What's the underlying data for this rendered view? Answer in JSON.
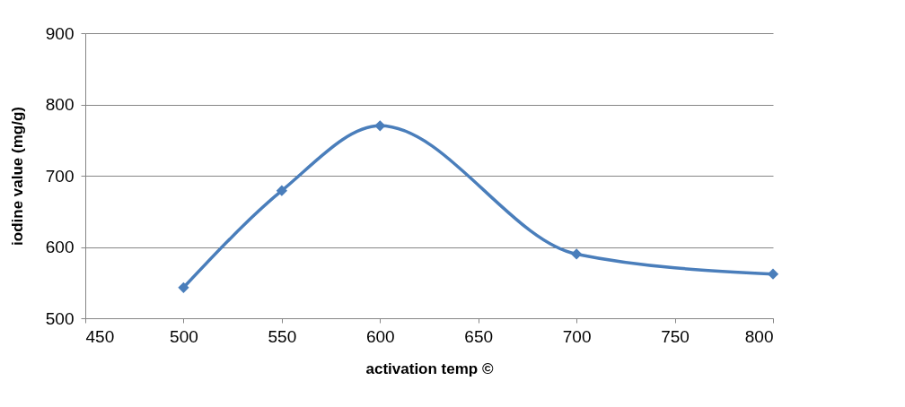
{
  "chart_data": {
    "type": "line",
    "xlabel": "activation temp ©",
    "ylabel": "iodine value (mg/g)",
    "x": [
      500,
      550,
      600,
      700,
      800
    ],
    "series": [
      {
        "color": "#4a7ebb",
        "values": [
          543,
          679,
          770,
          590,
          562
        ]
      }
    ],
    "xlim": [
      450,
      800
    ],
    "xticks": [
      450,
      500,
      550,
      600,
      650,
      700,
      750,
      800
    ],
    "ylim": [
      500,
      900
    ],
    "yticks": [
      500,
      600,
      700,
      800,
      900
    ],
    "grid": "y",
    "marker": "diamond"
  }
}
